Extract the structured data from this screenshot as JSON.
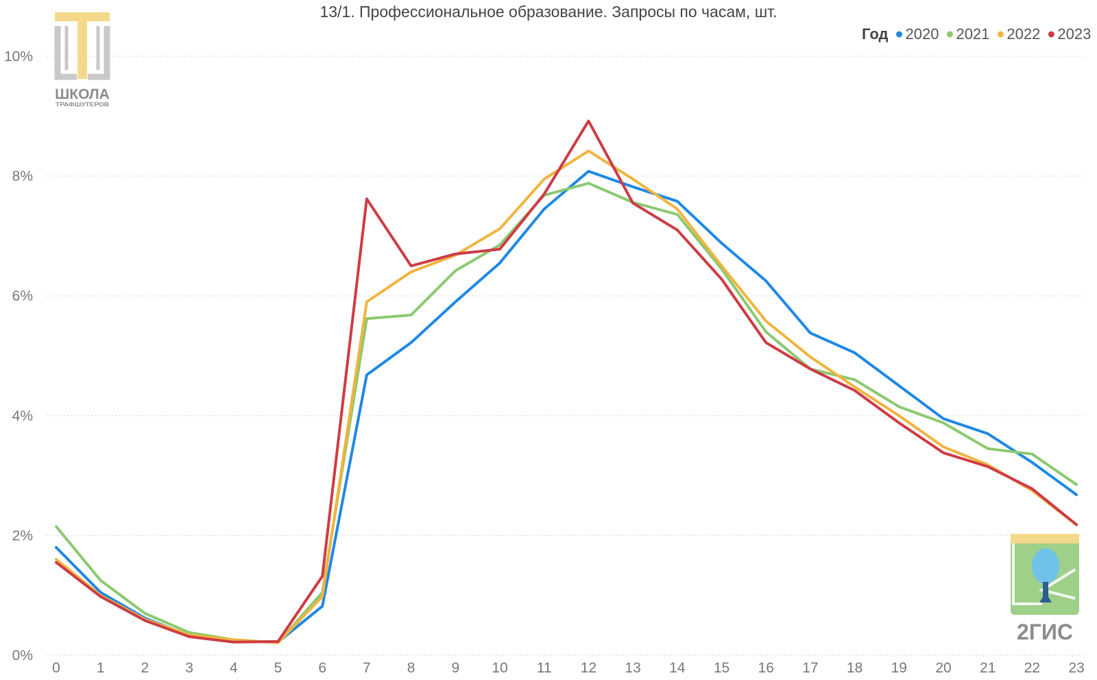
{
  "chart_data": {
    "type": "line",
    "title": "13/1. Профессиональное образование. Запросы по часам, шт.",
    "xlabel": "",
    "ylabel": "",
    "x": [
      0,
      1,
      2,
      3,
      4,
      5,
      6,
      7,
      8,
      9,
      10,
      11,
      12,
      13,
      14,
      15,
      16,
      17,
      18,
      19,
      20,
      21,
      22,
      23
    ],
    "ylim": [
      0,
      10
    ],
    "y_ticks": [
      0,
      2,
      4,
      6,
      8,
      10
    ],
    "y_tick_labels": [
      "0%",
      "2%",
      "4%",
      "6%",
      "8%",
      "10%"
    ],
    "grid": true,
    "legend": {
      "title": "Год",
      "position": "top-right"
    },
    "series": [
      {
        "name": "2020",
        "color": "#1f88e5",
        "values": [
          1.8,
          1.05,
          0.62,
          0.33,
          0.24,
          0.22,
          0.82,
          4.68,
          5.22,
          5.9,
          6.55,
          7.45,
          8.08,
          7.82,
          7.58,
          6.88,
          6.25,
          5.38,
          5.05,
          4.5,
          3.95,
          3.7,
          3.22,
          2.68
        ]
      },
      {
        "name": "2021",
        "color": "#8bc970",
        "values": [
          2.15,
          1.25,
          0.7,
          0.38,
          0.26,
          0.21,
          1.05,
          5.62,
          5.68,
          6.42,
          6.85,
          7.68,
          7.88,
          7.56,
          7.36,
          6.45,
          5.4,
          4.78,
          4.6,
          4.15,
          3.88,
          3.45,
          3.36,
          2.85
        ]
      },
      {
        "name": "2022",
        "color": "#f0b53f",
        "values": [
          1.6,
          1.0,
          0.6,
          0.34,
          0.26,
          0.21,
          0.98,
          5.9,
          6.4,
          6.68,
          7.12,
          7.95,
          8.42,
          7.95,
          7.45,
          6.5,
          5.58,
          4.98,
          4.48,
          4.0,
          3.48,
          3.18,
          2.75,
          2.18
        ]
      },
      {
        "name": "2023",
        "color": "#cd3c45",
        "values": [
          1.55,
          0.98,
          0.58,
          0.31,
          0.22,
          0.23,
          1.32,
          7.62,
          6.5,
          6.7,
          6.78,
          7.7,
          8.92,
          7.55,
          7.1,
          6.28,
          5.22,
          4.78,
          4.42,
          3.88,
          3.38,
          3.15,
          2.78,
          2.18
        ]
      }
    ]
  },
  "logos": {
    "top_left": {
      "text": "ШКОЛА",
      "subtext": "ТРАФШУТЕРОВ",
      "colors": {
        "bar": "#f5d98b",
        "frame": "#c9c9c9"
      }
    },
    "bottom_right": {
      "text": "2ГИС",
      "colors": {
        "yellow": "#f5d98b",
        "green": "#9ed08a",
        "blue": "#6fc3e8",
        "navy": "#2e5d8f"
      }
    }
  }
}
